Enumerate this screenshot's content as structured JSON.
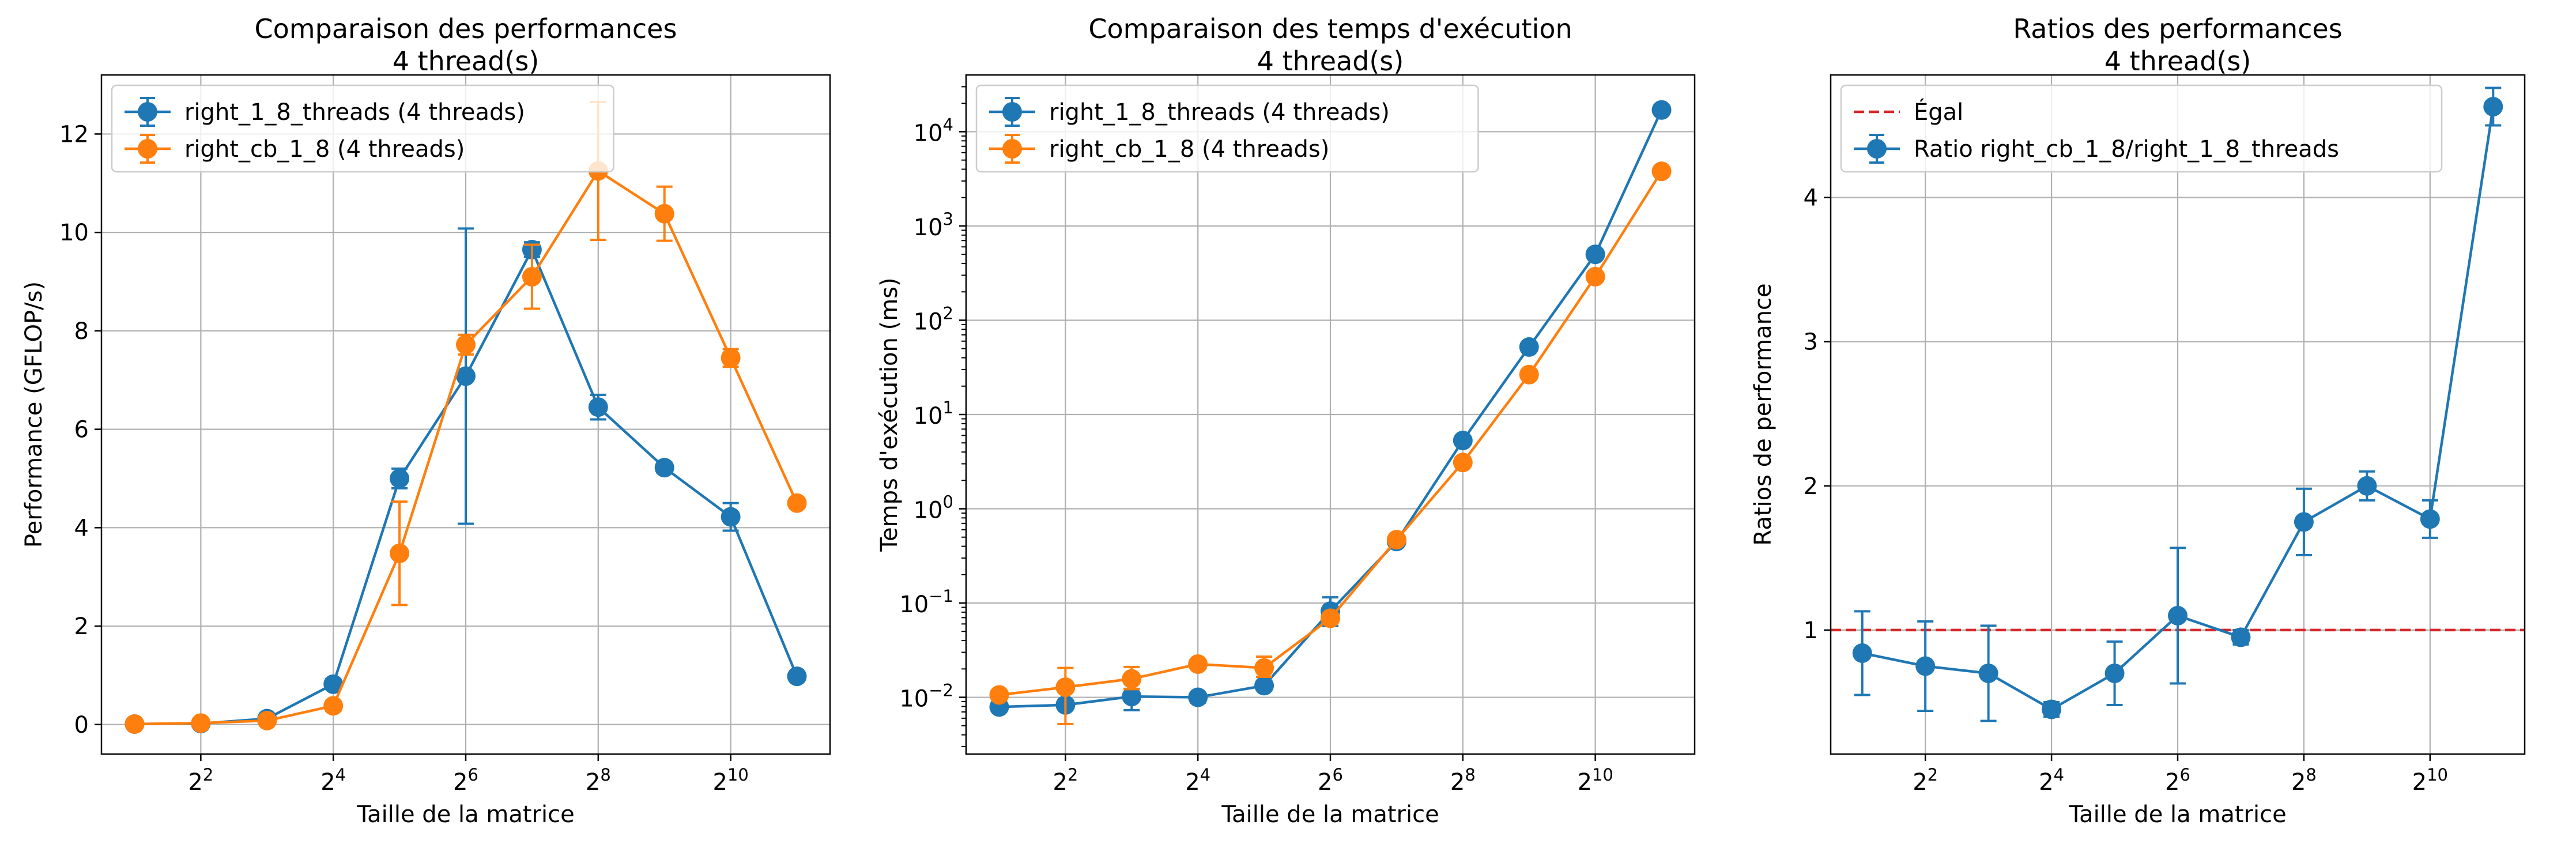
{
  "colors": {
    "blue": "#1f77b4",
    "orange": "#ff7f0e",
    "red": "#d62728",
    "grid": "#b0b0b0",
    "axis": "#000000"
  },
  "chart_data": [
    {
      "type": "line",
      "title": "Comparaison des performances\n4 thread(s)",
      "xlabel": "Taille de la matrice",
      "ylabel": "Performance (GFLOP/s)",
      "xscale": "log2",
      "x": [
        2,
        4,
        8,
        16,
        32,
        64,
        128,
        256,
        512,
        1024,
        2048
      ],
      "xticks": [
        4,
        16,
        64,
        256,
        1024
      ],
      "xticklabels": [
        "2",
        "2",
        "2",
        "2",
        "2"
      ],
      "xtick_exponents": [
        "2",
        "4",
        "6",
        "8",
        "10"
      ],
      "ylim": [
        -0.6,
        13.2
      ],
      "yticks": [
        0,
        2,
        4,
        6,
        8,
        10,
        12
      ],
      "yticklabels": [
        "0",
        "2",
        "4",
        "6",
        "8",
        "10",
        "12"
      ],
      "grid": true,
      "legend_position": "top-left",
      "series": [
        {
          "name": "right_1_8_threads (4 threads)",
          "color": "#1f77b4",
          "values": [
            0.01,
            0.02,
            0.12,
            0.82,
            5.0,
            7.08,
            9.65,
            6.45,
            5.22,
            4.22,
            0.98
          ],
          "err": [
            0,
            0,
            0,
            0.1,
            0.2,
            3.0,
            0.15,
            0.25,
            0.1,
            0.28,
            0.06
          ]
        },
        {
          "name": "right_cb_1_8 (4 threads)",
          "color": "#ff7f0e",
          "values": [
            0.01,
            0.03,
            0.08,
            0.38,
            3.48,
            7.72,
            9.1,
            11.25,
            10.38,
            7.45,
            4.5
          ],
          "err": [
            0,
            0,
            0,
            0.1,
            1.05,
            0.2,
            0.65,
            1.4,
            0.55,
            0.18,
            0.1
          ]
        }
      ]
    },
    {
      "type": "line",
      "title": "Comparaison des temps d'exécution\n4 thread(s)",
      "xlabel": "Taille de la matrice",
      "ylabel": "Temps d'exécution (ms)",
      "xscale": "log2",
      "yscale": "log10",
      "x": [
        2,
        4,
        8,
        16,
        32,
        64,
        128,
        256,
        512,
        1024,
        2048
      ],
      "xticks": [
        4,
        16,
        64,
        256,
        1024
      ],
      "xticklabels": [
        "2",
        "2",
        "2",
        "2",
        "2"
      ],
      "xtick_exponents": [
        "2",
        "4",
        "6",
        "8",
        "10"
      ],
      "ylim": [
        0.0025,
        40000
      ],
      "yticks": [
        0.01,
        0.1,
        1,
        10,
        100,
        1000,
        10000
      ],
      "yticklabels": [
        "10",
        "10",
        "10",
        "10",
        "10",
        "10",
        "10"
      ],
      "ytick_exponents": [
        "−2",
        "−1",
        "0",
        "1",
        "2",
        "3",
        "4"
      ],
      "grid": true,
      "legend_position": "top-left",
      "series": [
        {
          "name": "right_1_8_threads (4 threads)",
          "color": "#1f77b4",
          "values": [
            0.0079,
            0.0083,
            0.0102,
            0.01,
            0.0133,
            0.082,
            0.45,
            5.3,
            52,
            500,
            17000
          ],
          "err_low": [
            0.0079,
            0.0083,
            0.0073,
            0.0088,
            0.0133,
            0.057,
            0.45,
            5.3,
            52,
            500,
            17000
          ],
          "err_high": [
            0.0079,
            0.0083,
            0.0123,
            0.0108,
            0.0133,
            0.115,
            0.45,
            5.3,
            52,
            500,
            17000
          ]
        },
        {
          "name": "right_cb_1_8 (4 threads)",
          "color": "#ff7f0e",
          "values": [
            0.0106,
            0.0128,
            0.0157,
            0.0225,
            0.0205,
            0.069,
            0.47,
            3.1,
            26.5,
            290,
            3800
          ],
          "err_low": [
            0.0096,
            0.0052,
            0.0122,
            0.0201,
            0.0165,
            0.061,
            0.47,
            2.8,
            26.5,
            290,
            3800
          ],
          "err_high": [
            0.0116,
            0.0205,
            0.021,
            0.025,
            0.027,
            0.077,
            0.47,
            3.5,
            26.5,
            290,
            3800
          ]
        }
      ]
    },
    {
      "type": "line",
      "title": "Ratios des performances\n4 thread(s)",
      "xlabel": "Taille de la matrice",
      "ylabel": "Ratios de performance",
      "xscale": "log2",
      "x": [
        2,
        4,
        8,
        16,
        32,
        64,
        128,
        256,
        512,
        1024,
        2048
      ],
      "xticks": [
        4,
        16,
        64,
        256,
        1024
      ],
      "xticklabels": [
        "2",
        "2",
        "2",
        "2",
        "2"
      ],
      "xtick_exponents": [
        "2",
        "4",
        "6",
        "8",
        "10"
      ],
      "ylim": [
        0.14,
        4.85
      ],
      "yticks": [
        1,
        2,
        3,
        4
      ],
      "yticklabels": [
        "1",
        "2",
        "3",
        "4"
      ],
      "grid": true,
      "legend_position": "top-left",
      "hline": {
        "y": 1,
        "name": "Égal",
        "color": "#d62728",
        "style": "dashed"
      },
      "series": [
        {
          "name": "Ratio right_cb_1_8/right_1_8_threads",
          "color": "#1f77b4",
          "values": [
            0.84,
            0.75,
            0.7,
            0.45,
            0.7,
            1.1,
            0.95,
            1.75,
            2.0,
            1.77,
            4.63
          ],
          "err": [
            0.29,
            0.31,
            0.33,
            0.05,
            0.22,
            0.47,
            0.05,
            0.23,
            0.1,
            0.13,
            0.13
          ]
        }
      ]
    }
  ]
}
